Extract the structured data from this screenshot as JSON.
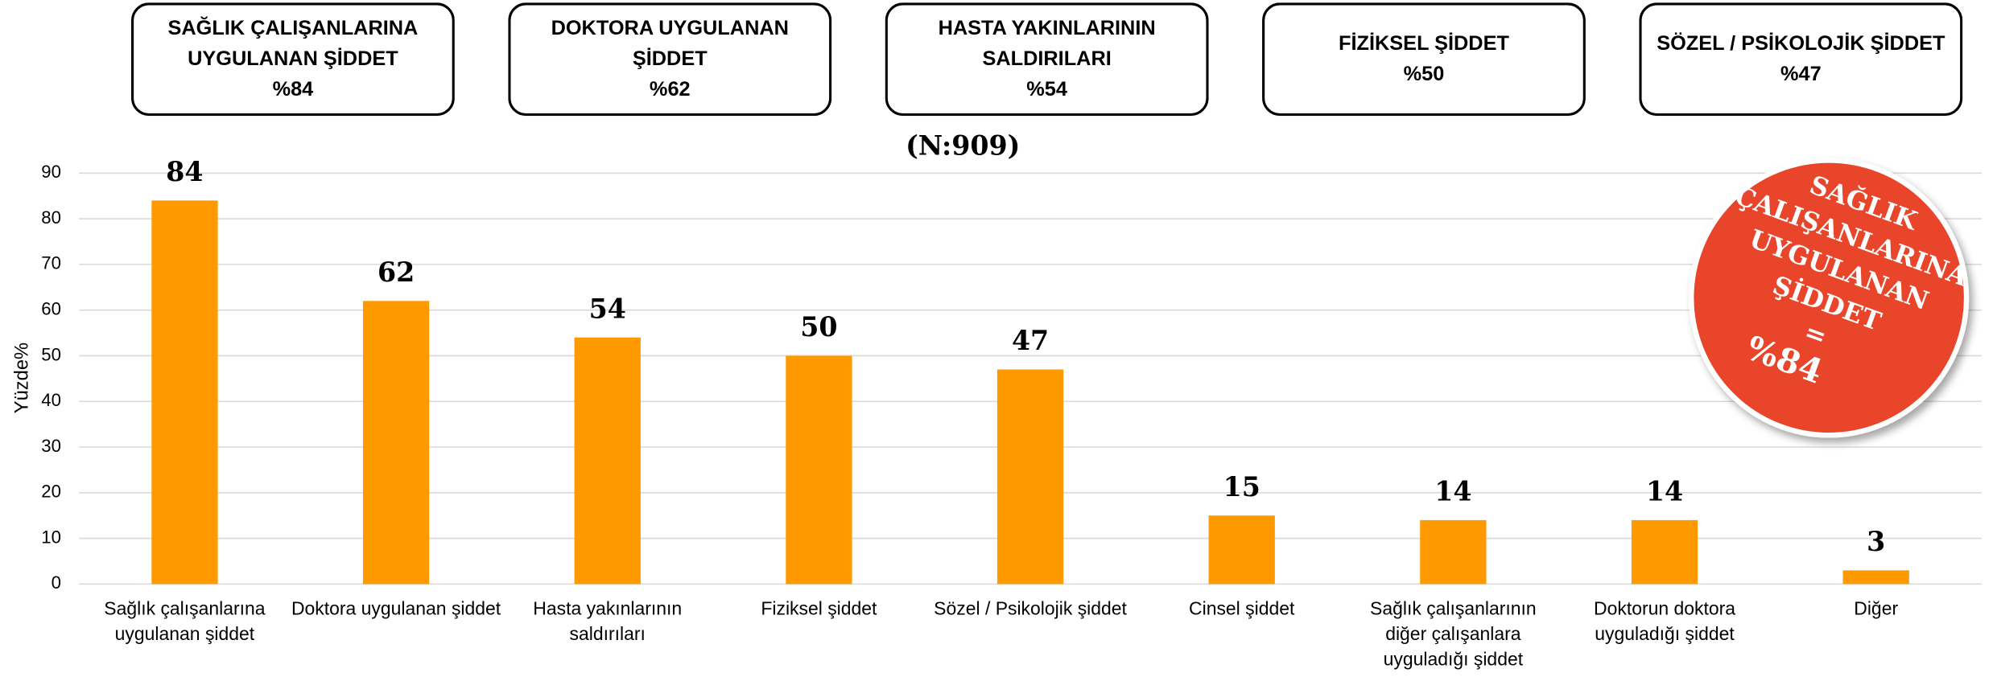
{
  "chart_data": {
    "type": "bar",
    "subtitle": "(N:909)",
    "ylabel": "Yüzde%",
    "categories": [
      "Sağlık çalışanlarına uygulanan şiddet",
      "Doktora uygulanan şiddet",
      "Hasta yakınlarının saldırıları",
      "Fiziksel şiddet",
      "Sözel / Psikolojik şiddet",
      "Cinsel şiddet",
      "Sağlık çalışanlarının diğer çalışanlara uyguladığı şiddet",
      "Doktorun doktora uyguladığı şiddet",
      "Diğer"
    ],
    "values": [
      84,
      62,
      54,
      50,
      47,
      15,
      14,
      14,
      3
    ],
    "color": "#ff9900",
    "ylim": [
      0,
      90
    ],
    "yticks": [
      0,
      10,
      20,
      30,
      40,
      50,
      60,
      70,
      80,
      90
    ],
    "grid": true,
    "summary_boxes": [
      {
        "label": "SAĞLIK ÇALIŞANLARINA UYGULANAN ŞİDDET",
        "value": "%84"
      },
      {
        "label": "DOKTORA UYGULANAN ŞİDDET",
        "value": "%62"
      },
      {
        "label": "HASTA YAKINLARININ SALDIRILARI",
        "value": "%54"
      },
      {
        "label": "FİZİKSEL ŞİDDET",
        "value": "%50"
      },
      {
        "label": "SÖZEL / PSİKOLOJİK ŞİDDET",
        "value": "%47"
      }
    ],
    "badge": {
      "lines": [
        "SAĞLIK",
        "ÇALIŞANLARINA",
        "UYGULANAN",
        "ŞİDDET",
        "=",
        "%84"
      ],
      "color": "#e8452c"
    }
  }
}
